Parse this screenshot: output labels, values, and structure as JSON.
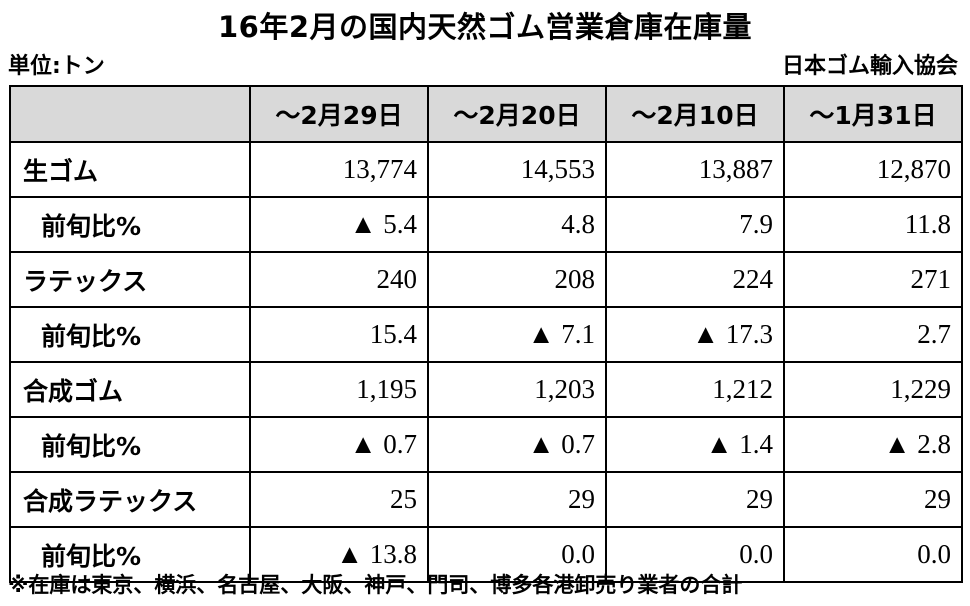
{
  "title": "16年2月の国内天然ゴム営業倉庫在庫量",
  "unit": "単位:トン",
  "source": "日本ゴム輸入協会",
  "columns": [
    "～2月29日",
    "～2月20日",
    "～2月10日",
    "～1月31日"
  ],
  "rows": [
    {
      "label": "生ゴム",
      "values": [
        "13,774",
        "14,553",
        "13,887",
        "12,870"
      ]
    },
    {
      "label": "前旬比%",
      "values": [
        "▲ 5.4",
        "4.8",
        "7.9",
        "11.8"
      ]
    },
    {
      "label": "ラテックス",
      "values": [
        "240",
        "208",
        "224",
        "271"
      ]
    },
    {
      "label": "前旬比%",
      "values": [
        "15.4",
        "▲ 7.1",
        "▲ 17.3",
        "2.7"
      ]
    },
    {
      "label": "合成ゴム",
      "values": [
        "1,195",
        "1,203",
        "1,212",
        "1,229"
      ]
    },
    {
      "label": "前旬比%",
      "values": [
        "▲ 0.7",
        "▲ 0.7",
        "▲ 1.4",
        "▲ 2.8"
      ]
    },
    {
      "label": "合成ラテックス",
      "values": [
        "25",
        "29",
        "29",
        "29"
      ]
    },
    {
      "label": "前旬比%",
      "values": [
        "▲ 13.8",
        "0.0",
        "0.0",
        "0.0"
      ]
    }
  ],
  "footnote": "※在庫は東京、横浜、名古屋、大阪、神戸、門司、博多各港卸売り業者の合計"
}
